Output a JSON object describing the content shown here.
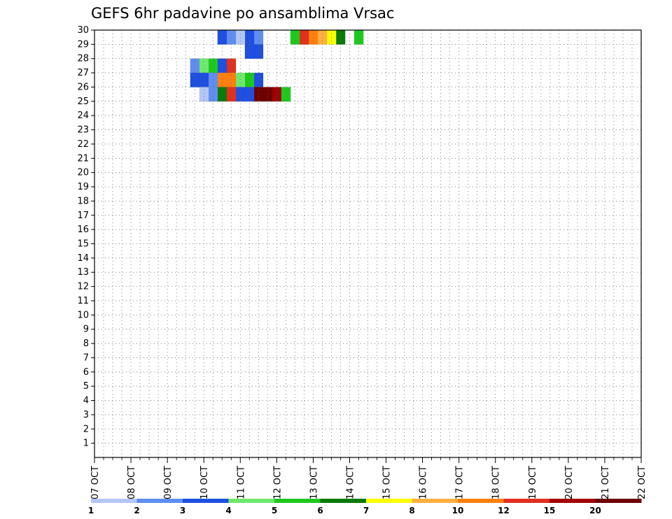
{
  "chart_data": {
    "type": "heatmap",
    "title": "GEFS 6hr padavine po ansamblima Vrsac",
    "x_tick_labels": [
      "07 OCT",
      "08 OCT",
      "09 OCT",
      "10 OCT",
      "11 OCT",
      "12 OCT",
      "13 OCT",
      "14 OCT",
      "15 OCT",
      "16 OCT",
      "17 OCT",
      "18 OCT",
      "19 OCT",
      "20 OCT",
      "21 OCT",
      "22 OCT"
    ],
    "y_tick_labels": [
      "1",
      "2",
      "3",
      "4",
      "5",
      "6",
      "7",
      "8",
      "9",
      "10",
      "11",
      "12",
      "13",
      "14",
      "15",
      "16",
      "17",
      "18",
      "19",
      "20",
      "21",
      "22",
      "23",
      "24",
      "25",
      "26",
      "27",
      "28",
      "29",
      "30"
    ],
    "ylim": [
      0,
      30
    ],
    "grid": true,
    "colorbar": {
      "labels": [
        "1",
        "2",
        "3",
        "4",
        "5",
        "6",
        "7",
        "8",
        "10",
        "12",
        "15",
        "20"
      ],
      "colors": [
        "#b3c6f5",
        "#5f8ef0",
        "#1f4fe0",
        "#6fe86f",
        "#1ec81e",
        "#0a7a0a",
        "#ffff00",
        "#ffb040",
        "#ff7f0f",
        "#e0301e",
        "#a00000",
        "#6e0000"
      ]
    },
    "cells": [
      {
        "m": 30,
        "x": 28.5,
        "l": 5
      },
      {
        "m": 30,
        "x": 26.5,
        "l": 6
      },
      {
        "m": 30,
        "x": 25.5,
        "l": 7
      },
      {
        "m": 30,
        "x": 24.5,
        "l": 8
      },
      {
        "m": 30,
        "x": 23.5,
        "l": 9
      },
      {
        "m": 30,
        "x": 22.5,
        "l": 10
      },
      {
        "m": 30,
        "x": 21.5,
        "l": 5
      },
      {
        "m": 30,
        "x": 17.5,
        "l": 2
      },
      {
        "m": 30,
        "x": 16.5,
        "l": 3
      },
      {
        "m": 30,
        "x": 15.5,
        "l": 1
      },
      {
        "m": 30,
        "x": 14.5,
        "l": 2
      },
      {
        "m": 30,
        "x": 13.5,
        "l": 3
      },
      {
        "m": 29,
        "x": 17.5,
        "l": 3
      },
      {
        "m": 29,
        "x": 16.5,
        "l": 3
      },
      {
        "m": 28,
        "x": 14.5,
        "l": 10
      },
      {
        "m": 28,
        "x": 13.5,
        "l": 3
      },
      {
        "m": 28,
        "x": 12.5,
        "l": 5
      },
      {
        "m": 28,
        "x": 11.5,
        "l": 4
      },
      {
        "m": 28,
        "x": 10.5,
        "l": 2
      },
      {
        "m": 27,
        "x": 17.5,
        "l": 3
      },
      {
        "m": 27,
        "x": 16.5,
        "l": 5
      },
      {
        "m": 27,
        "x": 15.5,
        "l": 4
      },
      {
        "m": 27,
        "x": 14.5,
        "l": 9
      },
      {
        "m": 27,
        "x": 13.5,
        "l": 9
      },
      {
        "m": 27,
        "x": 12.5,
        "l": 2
      },
      {
        "m": 27,
        "x": 11.5,
        "l": 3
      },
      {
        "m": 27,
        "x": 10.5,
        "l": 3
      },
      {
        "m": 26,
        "x": 20.5,
        "l": 5
      },
      {
        "m": 26,
        "x": 19.5,
        "l": 11
      },
      {
        "m": 26,
        "x": 18.5,
        "l": 12
      },
      {
        "m": 26,
        "x": 17.5,
        "l": 12
      },
      {
        "m": 26,
        "x": 16.5,
        "l": 3
      },
      {
        "m": 26,
        "x": 15.5,
        "l": 3
      },
      {
        "m": 26,
        "x": 14.5,
        "l": 10
      },
      {
        "m": 26,
        "x": 13.5,
        "l": 6
      },
      {
        "m": 26,
        "x": 12.5,
        "l": 2
      },
      {
        "m": 26,
        "x": 11.5,
        "l": 1
      }
    ],
    "hc": {
      "m": 26,
      "x": 20.5,
      "l": 5
    }
  }
}
